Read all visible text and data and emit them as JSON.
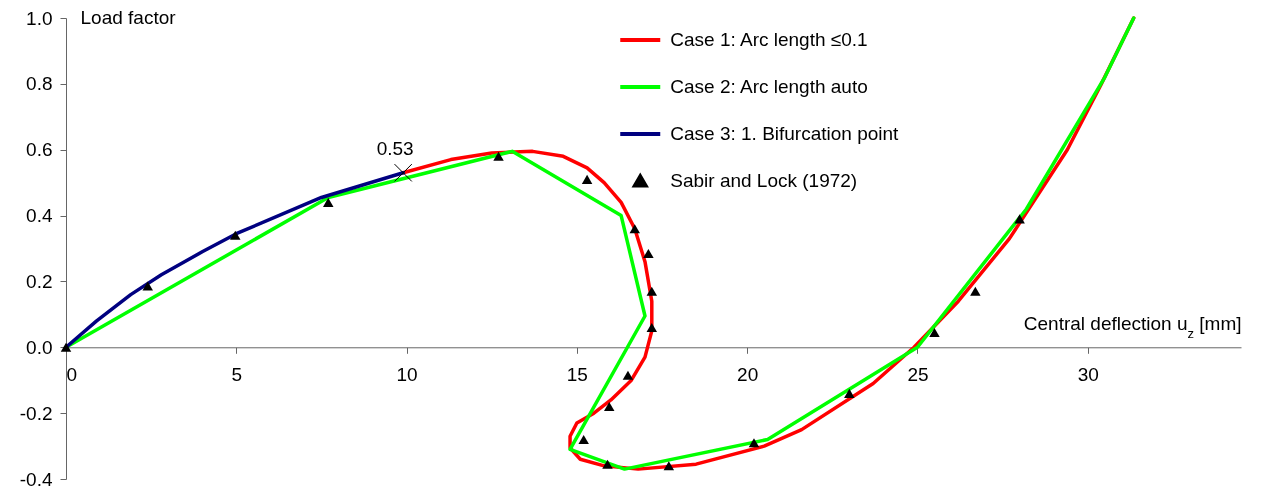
{
  "chart_data": {
    "type": "line",
    "xlabel": "Central deflection u$_{z}$ [mm]",
    "ylabel": "Load factor",
    "xlim": [
      0,
      34.5
    ],
    "ylim": [
      -0.4,
      1.0
    ],
    "xticks": [
      0,
      5,
      10,
      15,
      20,
      25,
      30
    ],
    "yticks": [
      {
        "value": -0.4,
        "label": "-0.4"
      },
      {
        "value": -0.2,
        "label": "-0.2"
      },
      {
        "value": 0,
        "label": "0.0"
      },
      {
        "value": 0.2,
        "label": "0.2"
      },
      {
        "value": 0.4,
        "label": "0.4"
      },
      {
        "value": 0.6,
        "label": "0.6"
      },
      {
        "value": 0.8,
        "label": "0.8"
      },
      {
        "value": 1,
        "label": "1.0"
      }
    ],
    "grid": false,
    "legend": "top",
    "marker": "none",
    "line_style": "solid",
    "annotations": [
      {
        "text": "0.53",
        "x": 9.9,
        "y": 0.53
      }
    ],
    "series": [
      {
        "name": "Case 1: Arc length ≤0.1",
        "color": "#ff0000",
        "x": [
          9.9,
          11.3,
          12.5,
          13.7,
          14.6,
          15.3,
          15.8,
          16.3,
          16.7,
          17.0,
          17.2,
          17.2,
          17.0,
          16.6,
          16.0,
          15.5,
          15.0,
          14.8,
          14.8,
          15.1,
          15.8,
          16.8,
          18.5,
          20.5,
          21.6,
          23.7,
          24.9,
          26.2,
          27.7,
          29.4,
          30.4,
          31.35
        ],
        "values": [
          0.53,
          0.57,
          0.59,
          0.595,
          0.58,
          0.545,
          0.5,
          0.44,
          0.36,
          0.26,
          0.14,
          0.05,
          -0.03,
          -0.1,
          -0.16,
          -0.2,
          -0.23,
          -0.27,
          -0.305,
          -0.34,
          -0.36,
          -0.37,
          -0.355,
          -0.3,
          -0.25,
          -0.11,
          0,
          0.14,
          0.33,
          0.6,
          0.8,
          1.0
        ]
      },
      {
        "name": "Case 2: Arc length auto",
        "color": "#00ff00",
        "x": [
          0,
          7.7,
          13.1,
          16.3,
          17.0,
          14.8,
          16.4,
          20.6,
          25.0,
          28.2,
          30.5,
          31.35
        ],
        "values": [
          0,
          0.455,
          0.595,
          0.4,
          0.095,
          -0.31,
          -0.37,
          -0.28,
          0,
          0.42,
          0.82,
          1.0
        ]
      },
      {
        "name": "Case 3: 1. Bifurcation point",
        "color": "#000080",
        "x": [
          0,
          0.9,
          1.9,
          2.8,
          4,
          5,
          7.5,
          9.9
        ],
        "values": [
          0,
          0.08,
          0.16,
          0.22,
          0.29,
          0.345,
          0.455,
          0.53
        ]
      },
      {
        "name": "Sabir and Lock (1972)",
        "color": "#000000",
        "type": "scatter",
        "marker": "triangle",
        "x": [
          0,
          2.4,
          4.97,
          7.7,
          12.7,
          15.3,
          16.7,
          17.1,
          17.2,
          17.2,
          16.5,
          15.95,
          15.2,
          15.9,
          17.7,
          20.2,
          23.0,
          25.5,
          26.7,
          28.0
        ],
        "values": [
          0,
          0.186,
          0.34,
          0.44,
          0.58,
          0.51,
          0.36,
          0.285,
          0.17,
          0.06,
          -0.085,
          -0.18,
          -0.28,
          -0.355,
          -0.36,
          -0.29,
          -0.14,
          0.045,
          0.17,
          0.39
        ]
      }
    ]
  }
}
